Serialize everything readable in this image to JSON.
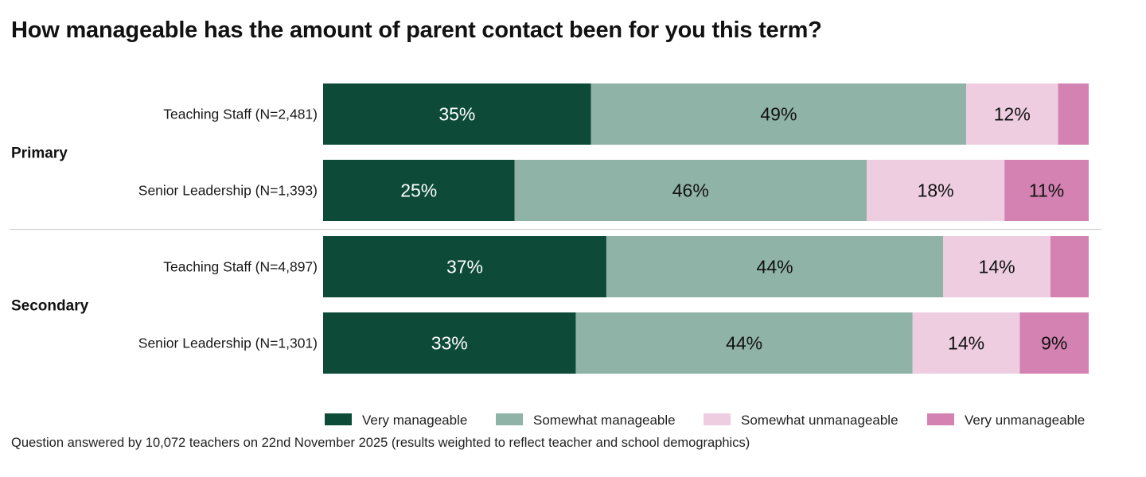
{
  "chart_data": {
    "type": "bar",
    "orientation": "horizontal",
    "stacked": true,
    "percent": true,
    "title": "How manageable has the amount of parent contact been for you this term?",
    "groups": [
      {
        "label": "Primary",
        "rows": [
          {
            "label": "Teaching Staff (N=2,481)",
            "values": [
              35,
              49,
              12,
              4
            ],
            "labels": [
              "35%",
              "49%",
              "12%",
              ""
            ]
          },
          {
            "label": "Senior Leadership (N=1,393)",
            "values": [
              25,
              46,
              18,
              11
            ],
            "labels": [
              "25%",
              "46%",
              "18%",
              "11%"
            ]
          }
        ]
      },
      {
        "label": "Secondary",
        "rows": [
          {
            "label": "Teaching Staff (N=4,897)",
            "values": [
              37,
              44,
              14,
              5
            ],
            "labels": [
              "37%",
              "44%",
              "14%",
              ""
            ]
          },
          {
            "label": "Senior Leadership (N=1,301)",
            "values": [
              33,
              44,
              14,
              9
            ],
            "labels": [
              "33%",
              "44%",
              "14%",
              "9%"
            ]
          }
        ]
      }
    ],
    "series": [
      {
        "name": "Very manageable",
        "color": "#0d4b38",
        "label_color": "#ffffff"
      },
      {
        "name": "Somewhat manageable",
        "color": "#8fb3a6",
        "label_color": "#111111"
      },
      {
        "name": "Somewhat unmanageable",
        "color": "#eecde1",
        "label_color": "#111111"
      },
      {
        "name": "Very unmanageable",
        "color": "#d382b2",
        "label_color": "#111111"
      }
    ],
    "legend_position": "bottom-right",
    "grid": false
  },
  "footnote": "Question answered by 10,072 teachers on 22nd November 2025 (results weighted to reflect teacher and school demographics)"
}
